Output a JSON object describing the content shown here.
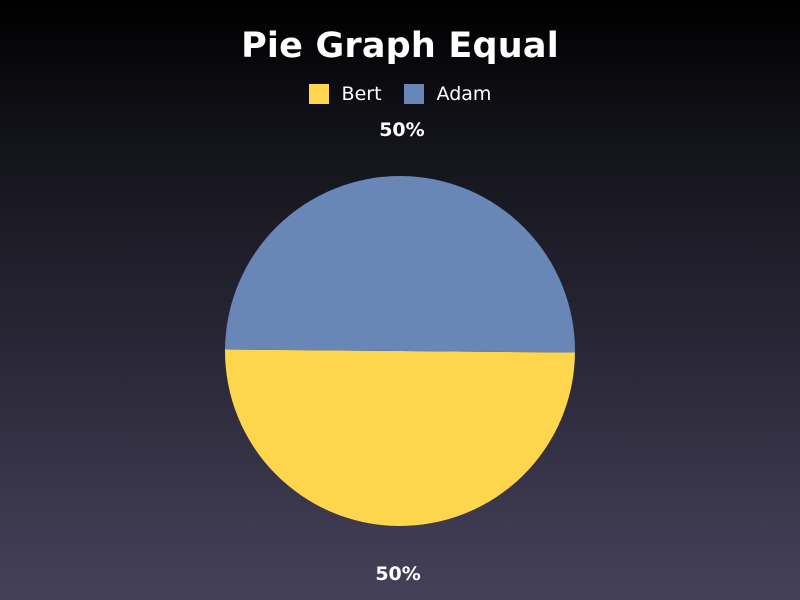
{
  "chart_data": {
    "type": "pie",
    "title": "Pie Graph Equal",
    "legend_position": "top",
    "slices": [
      {
        "name": "Bert",
        "value": 50,
        "label": "50%",
        "color": "#FDD64E"
      },
      {
        "name": "Adam",
        "value": 50,
        "label": "50%",
        "color": "#6886B6"
      }
    ]
  }
}
